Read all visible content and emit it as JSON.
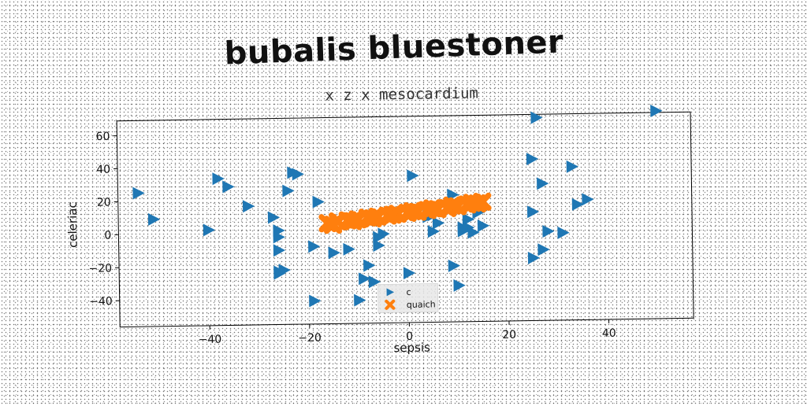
{
  "header": {
    "title": "bubalis bluestoner"
  },
  "chart_data": {
    "type": "scatter",
    "title": "x z x mesocardium",
    "xlabel": "sepsis",
    "ylabel": "celeriac",
    "xlim": [
      -58,
      57
    ],
    "ylim": [
      -56,
      69
    ],
    "xticks": [
      -40,
      -20,
      0,
      20,
      40
    ],
    "yticks": [
      -40,
      -20,
      0,
      20,
      40,
      60
    ],
    "grid": false,
    "legend_position": "lower-center",
    "series": [
      {
        "name": "c",
        "marker": "triangle-right",
        "color": "#1f77b4",
        "x": [
          -54,
          -51,
          -40,
          -38,
          -36,
          -32,
          -27,
          -26,
          -26,
          -26,
          -26,
          -26,
          -25,
          -24,
          -23,
          -22,
          -19,
          -19,
          -18,
          -15,
          -12,
          -10,
          -9,
          -8,
          -7,
          -6,
          -6,
          -5,
          0,
          1,
          4,
          5,
          5,
          6,
          9,
          9,
          10,
          11,
          11,
          12,
          12,
          13,
          14,
          15,
          25,
          25,
          25,
          26,
          27,
          27,
          28,
          31,
          33,
          34,
          36,
          50
        ],
        "y": [
          25,
          9,
          2,
          33,
          28,
          16,
          9,
          1,
          -3,
          -11,
          -24,
          -25,
          -23,
          25,
          36,
          35,
          -42,
          -9,
          18,
          -13,
          -11,
          -42,
          -29,
          -21,
          -31,
          -4,
          -9,
          -2,
          -26,
          33,
          8,
          9,
          -1,
          4,
          21,
          -22,
          -34,
          -1,
          1,
          1,
          6,
          -2,
          10,
          2,
          -18,
          42,
          10,
          67,
          27,
          -13,
          -2,
          -3,
          37,
          14,
          17,
          70
        ]
      },
      {
        "name": "quaich",
        "marker": "x",
        "color": "#ff7f0e",
        "x": [
          -16,
          -14,
          -12,
          -10,
          -8,
          -6,
          -4,
          -2,
          0,
          2,
          4,
          6,
          8,
          10,
          12,
          14,
          -15,
          -11,
          -7,
          -3,
          1,
          5,
          9,
          13,
          15
        ],
        "y": [
          5,
          6,
          6.5,
          7,
          8,
          8.5,
          9,
          10,
          10.5,
          11,
          12,
          12.5,
          13,
          14,
          15,
          15.5,
          4,
          6,
          7.5,
          9.5,
          11.5,
          13,
          14.5,
          16,
          16.5
        ]
      }
    ]
  }
}
